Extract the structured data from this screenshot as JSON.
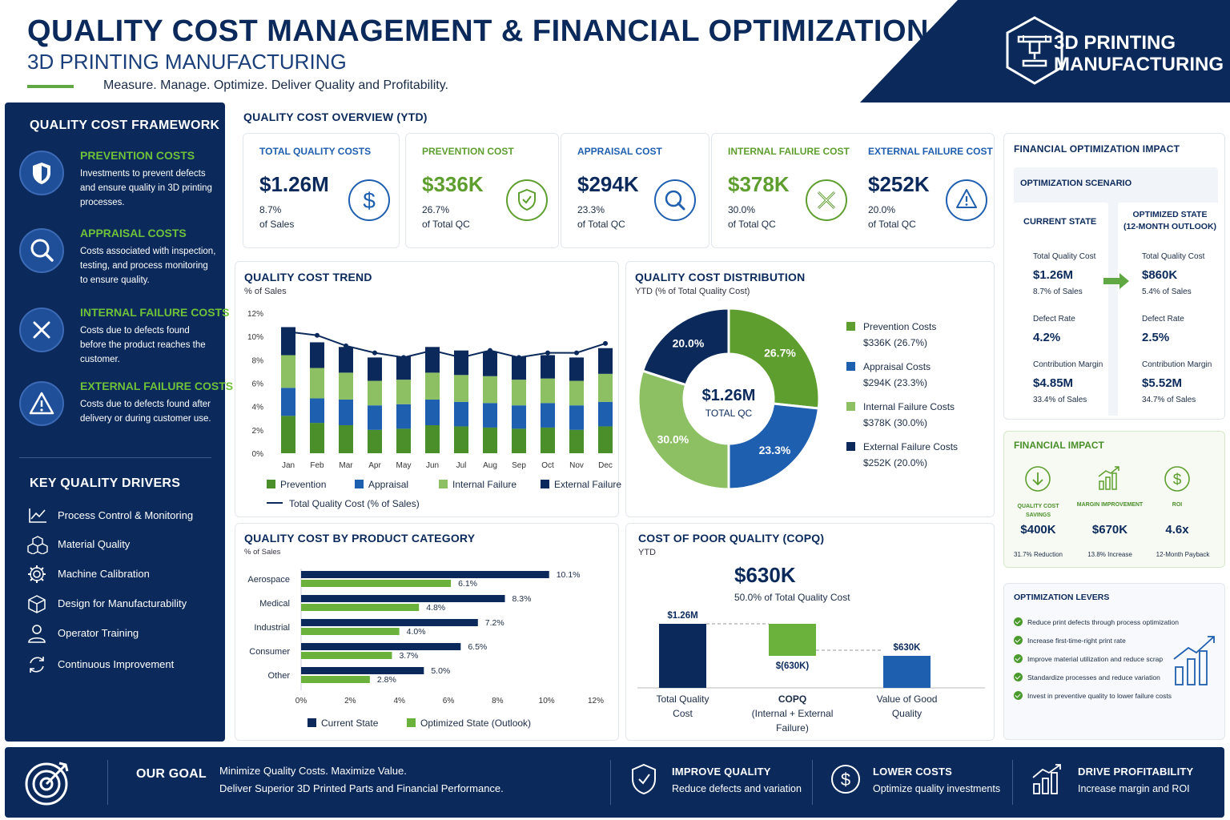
{
  "header": {
    "title": "QUALITY COST MANAGEMENT & FINANCIAL OPTIMIZATION",
    "subtitle": "3D PRINTING MANUFACTURING",
    "tagline": "Measure. Manage. Optimize. Deliver Quality and Profitability.",
    "badge_line1": "3D PRINTING",
    "badge_line2": "MANUFACTURING"
  },
  "colors": {
    "navy": "#0b2a5b",
    "green": "#5e9e2e",
    "light_green": "#8cc063",
    "blue": "#1f5faf"
  },
  "framework": {
    "title": "QUALITY COST FRAMEWORK",
    "items": [
      {
        "icon": "shield-icon",
        "title": "PREVENTION COSTS",
        "desc": "Investments to prevent defects and ensure quality in 3D printing processes."
      },
      {
        "icon": "magnifier-icon",
        "title": "APPRAISAL COSTS",
        "desc": "Costs associated with inspection, testing, and process monitoring to ensure quality."
      },
      {
        "icon": "x-icon",
        "title": "INTERNAL FAILURE COSTS",
        "desc": "Costs due to defects found before the product reaches the customer."
      },
      {
        "icon": "warning-icon",
        "title": "EXTERNAL FAILURE COSTS",
        "desc": "Costs due to defects found after delivery or during customer use."
      }
    ]
  },
  "drivers": {
    "title": "KEY QUALITY DRIVERS",
    "items": [
      {
        "icon": "line-chart-icon",
        "label": "Process Control & Monitoring"
      },
      {
        "icon": "cubes-icon",
        "label": "Material Quality"
      },
      {
        "icon": "gear-icon",
        "label": "Machine Calibration"
      },
      {
        "icon": "box-icon",
        "label": "Design for Manufacturability"
      },
      {
        "icon": "person-icon",
        "label": "Operator Training"
      },
      {
        "icon": "cycle-icon",
        "label": "Continuous Improvement"
      }
    ]
  },
  "overview": {
    "title": "QUALITY COST OVERVIEW (YTD)",
    "kpis": [
      {
        "title": "TOTAL QUALITY COSTS",
        "value": "$1.26M",
        "pct": "8.7%",
        "note": "of Sales",
        "icon": "dollar-icon"
      },
      {
        "title": "PREVENTION COST",
        "value": "$336K",
        "pct": "26.7%",
        "note": "of Total QC",
        "icon": "shield-icon"
      },
      {
        "title": "APPRAISAL COST",
        "value": "$294K",
        "pct": "23.3%",
        "note": "of Total QC",
        "icon": "magnifier-icon"
      },
      {
        "title": "INTERNAL FAILURE COST",
        "value": "$378K",
        "pct": "30.0%",
        "note": "of Total QC",
        "icon": "x-icon"
      },
      {
        "title": "EXTERNAL FAILURE COST",
        "value": "$252K",
        "pct": "20.0%",
        "note": "of Total QC",
        "icon": "warning-icon"
      }
    ]
  },
  "trend_labels": {
    "title": "QUALITY COST TREND",
    "subtitle": "% of Sales"
  },
  "distribution_labels": {
    "title": "QUALITY COST DISTRIBUTION",
    "subtitle": "YTD (% of Total Quality Cost)",
    "center_value": "$1.26M",
    "center_label": "TOTAL QC"
  },
  "category_labels": {
    "title": "QUALITY COST BY PRODUCT CATEGORY",
    "subtitle": "% of Sales"
  },
  "copq": {
    "title": "COST OF POOR QUALITY (COPQ)",
    "subtitle": "YTD",
    "value": "$630K",
    "note": "50.0% of Total Quality Cost"
  },
  "chart_data": [
    {
      "type": "bar",
      "stacked": true,
      "title": "QUALITY COST TREND",
      "ylabel": "% of Sales",
      "categories": [
        "Jan",
        "Feb",
        "Mar",
        "Apr",
        "May",
        "Jun",
        "Jul",
        "Aug",
        "Sep",
        "Oct",
        "Nov",
        "Dec"
      ],
      "yticks": [
        "0%",
        "2%",
        "4%",
        "6%",
        "8%",
        "10%",
        "12%"
      ],
      "ylim": [
        0,
        12
      ],
      "series": [
        {
          "name": "Prevention",
          "color": "#4a8f2a",
          "values": [
            3.2,
            2.6,
            2.4,
            2.0,
            2.1,
            2.4,
            2.3,
            2.2,
            2.1,
            2.2,
            2.0,
            2.3
          ]
        },
        {
          "name": "Appraisal",
          "color": "#1f5faf",
          "values": [
            2.4,
            2.1,
            2.2,
            2.1,
            2.1,
            2.2,
            2.1,
            2.1,
            2.0,
            2.1,
            2.1,
            2.1
          ]
        },
        {
          "name": "Internal Failure",
          "color": "#8cc063",
          "values": [
            2.8,
            2.6,
            2.3,
            2.1,
            2.1,
            2.3,
            2.3,
            2.3,
            2.2,
            2.1,
            2.1,
            2.4
          ]
        }
      ],
      "line": {
        "name": "Total Quality Cost (% of Sales)",
        "color": "#0b2a5b",
        "values": [
          10.4,
          10.1,
          9.2,
          8.6,
          8.2,
          8.8,
          8.2,
          8.8,
          8.2,
          8.6,
          8.6,
          9.4
        ]
      },
      "legend_extra": {
        "name": "External Failure",
        "color": "#0b2a5b"
      },
      "legend": "bottom"
    },
    {
      "type": "pie",
      "title": "QUALITY COST DISTRIBUTION",
      "subtitle": "YTD (% of Total Quality Cost)",
      "donut": true,
      "slices": [
        {
          "name": "Prevention Costs",
          "detail": "$336K (26.7%)",
          "value": 26.7,
          "label": "26.7%",
          "color": "#5e9e2e"
        },
        {
          "name": "Appraisal Costs",
          "detail": "$294K (23.3%)",
          "value": 23.3,
          "label": "23.3%",
          "color": "#1f5faf"
        },
        {
          "name": "Internal Failure Costs",
          "detail": "$378K (30.0%)",
          "value": 30.0,
          "label": "30.0%",
          "color": "#8cc063"
        },
        {
          "name": "External Failure Costs",
          "detail": "$252K (20.0%)",
          "value": 20.0,
          "label": "20.0%",
          "color": "#0b2a5b"
        }
      ],
      "legend": "right"
    },
    {
      "type": "bar",
      "orientation": "horizontal",
      "title": "QUALITY COST BY PRODUCT CATEGORY",
      "categories": [
        "Aerospace",
        "Medical",
        "Industrial",
        "Consumer",
        "Other"
      ],
      "xticks": [
        "0%",
        "2%",
        "4%",
        "6%",
        "8%",
        "10%",
        "12%"
      ],
      "xlim": [
        0,
        12
      ],
      "series": [
        {
          "name": "Current State",
          "color": "#0b2a5b",
          "values": [
            10.1,
            8.3,
            7.2,
            6.5,
            5.0
          ],
          "labels": [
            "10.1%",
            "8.3%",
            "7.2%",
            "6.5%",
            "5.0%"
          ]
        },
        {
          "name": "Optimized State (Outlook)",
          "color": "#6ab23c",
          "values": [
            6.1,
            4.8,
            4.0,
            3.7,
            2.8
          ],
          "labels": [
            "6.1%",
            "4.8%",
            "4.0%",
            "3.7%",
            "2.8%"
          ]
        }
      ],
      "legend": "bottom"
    },
    {
      "type": "bar",
      "subtype": "waterfall",
      "title": "COST OF POOR QUALITY (COPQ)",
      "steps": [
        {
          "label_line1": "Total Quality",
          "label_line2": "Cost",
          "label_line3": "",
          "value": 1.26,
          "display": "$1.26M",
          "color": "#0b2a5b",
          "kind": "total"
        },
        {
          "label_line1": "COPQ",
          "label_line2": "(Internal + External",
          "label_line3": "Failure)",
          "value": -0.63,
          "display": "$(630K)",
          "color": "#6ab23c",
          "kind": "delta"
        },
        {
          "label_line1": "Value of Good",
          "label_line2": "Quality",
          "label_line3": "",
          "value": 0.63,
          "display": "$630K",
          "color": "#1f5faf",
          "kind": "total"
        }
      ]
    }
  ],
  "optimization": {
    "title": "FINANCIAL OPTIMIZATION IMPACT",
    "scenario_title": "OPTIMIZATION SCENARIO",
    "current_title": "CURRENT STATE",
    "optimized_title_line1": "OPTIMIZED STATE",
    "optimized_title_line2": "(12-MONTH OUTLOOK)",
    "metrics": [
      {
        "label": "Total Quality Cost",
        "current": "$1.26M",
        "current_sub": "8.7% of Sales",
        "optimized": "$860K",
        "optimized_sub": "5.4% of Sales"
      },
      {
        "label": "Defect Rate",
        "current": "4.2%",
        "current_sub": "",
        "optimized": "2.5%",
        "optimized_sub": ""
      },
      {
        "label": "Contribution Margin",
        "current": "$4.85M",
        "current_sub": "33.4% of Sales",
        "optimized": "$5.52M",
        "optimized_sub": "34.7% of Sales"
      }
    ]
  },
  "financial_impact": {
    "title": "FINANCIAL IMPACT",
    "items": [
      {
        "icon": "down-arrow-icon",
        "label_line1": "QUALITY COST",
        "label_line2": "SAVINGS",
        "value": "$400K",
        "note": "31.7% Reduction"
      },
      {
        "icon": "bar-growth-icon",
        "label_line1": "MARGIN IMPROVEMENT",
        "label_line2": "",
        "value": "$670K",
        "note": "13.8% Increase"
      },
      {
        "icon": "dollar-icon",
        "label_line1": "ROI",
        "label_line2": "",
        "value": "4.6x",
        "note": "12-Month Payback"
      }
    ]
  },
  "levers": {
    "title": "OPTIMIZATION LEVERS",
    "items": [
      "Reduce print defects through process optimization",
      "Increase first-time-right print rate",
      "Improve material utilization and reduce scrap",
      "Standardize processes and reduce variation",
      "Invest in preventive quality to lower failure costs"
    ]
  },
  "footer": {
    "goal_title": "OUR GOAL",
    "goal_line1": "Minimize Quality Costs. Maximize Value.",
    "goal_line2": "Deliver Superior 3D Printed Parts and Financial Performance.",
    "pillars": [
      {
        "icon": "shield-icon",
        "title": "IMPROVE QUALITY",
        "desc": "Reduce defects and variation"
      },
      {
        "icon": "dollar-icon",
        "title": "LOWER COSTS",
        "desc": "Optimize quality investments"
      },
      {
        "icon": "bar-growth-icon",
        "title": "DRIVE PROFITABILITY",
        "desc": "Increase margin and ROI"
      }
    ]
  }
}
